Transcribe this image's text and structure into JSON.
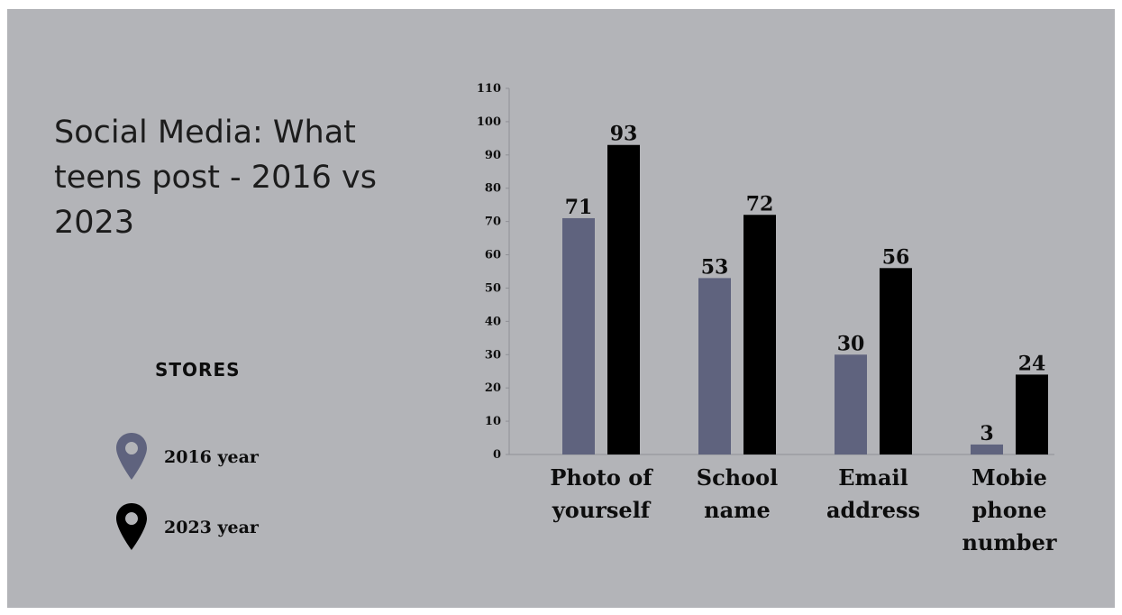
{
  "title": "Social Media: What teens post - 2016 vs 2023",
  "legend": {
    "heading": "STORES",
    "items": [
      {
        "label": "2016 year",
        "color": "#5f637e",
        "icon": "map-pin-icon"
      },
      {
        "label": "2023 year",
        "color": "#000000",
        "icon": "map-pin-icon"
      }
    ]
  },
  "chart_data": {
    "type": "bar",
    "categories": [
      [
        "Photo of",
        "yourself"
      ],
      [
        "School",
        "name"
      ],
      [
        "Email",
        "address"
      ],
      [
        "Mobie",
        "phone",
        "number"
      ]
    ],
    "series": [
      {
        "name": "2016 year",
        "color": "#5f637e",
        "values": [
          71,
          53,
          30,
          3
        ]
      },
      {
        "name": "2023 year",
        "color": "#000000",
        "values": [
          93,
          72,
          56,
          24
        ]
      }
    ],
    "ylim": [
      0,
      110
    ],
    "yticks": [
      0,
      10,
      20,
      30,
      40,
      50,
      60,
      70,
      80,
      90,
      100,
      110
    ],
    "grid": false,
    "legend_position": "left"
  }
}
